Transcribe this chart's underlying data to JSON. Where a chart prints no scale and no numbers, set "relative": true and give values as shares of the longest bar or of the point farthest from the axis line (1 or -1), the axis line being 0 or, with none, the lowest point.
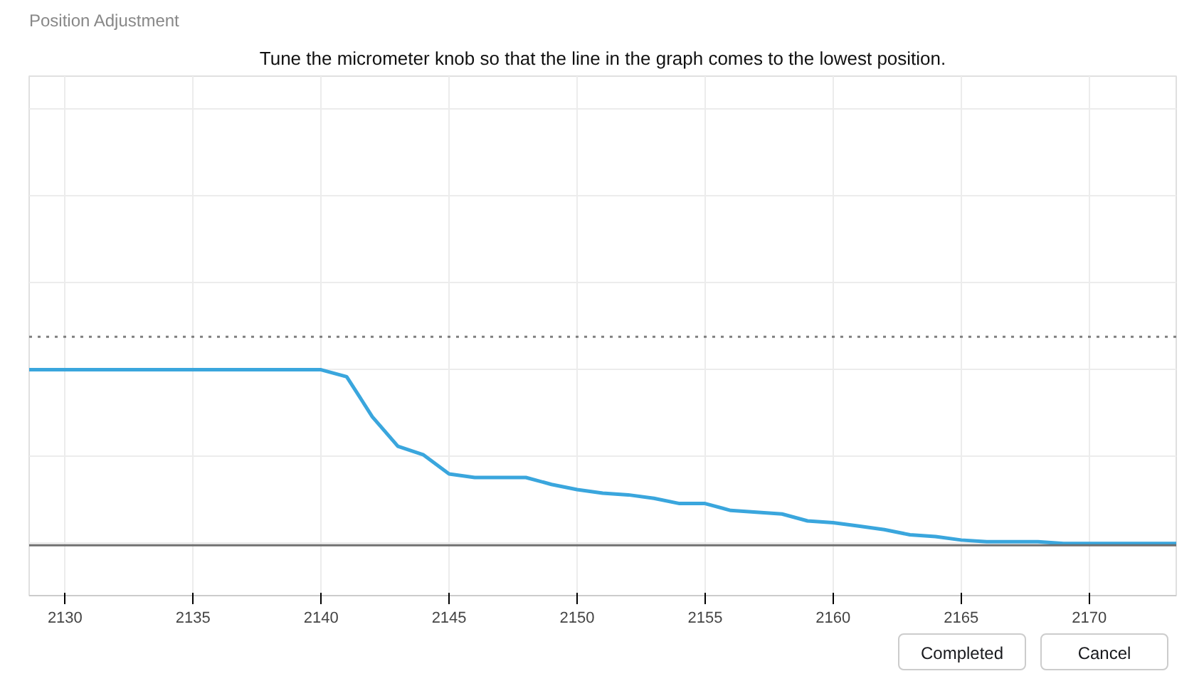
{
  "chart_data": {
    "type": "line",
    "title": "Position Adjustment",
    "subtitle": "Tune the micrometer knob so that the line in the graph comes to the lowest position.",
    "relative": true,
    "x": [
      2128.6,
      2129,
      2130,
      2131,
      2132,
      2133,
      2134,
      2135,
      2136,
      2137,
      2138,
      2139,
      2140,
      2141,
      2142,
      2143,
      2144,
      2145,
      2146,
      2147,
      2148,
      2149,
      2150,
      2151,
      2152,
      2153,
      2154,
      2155,
      2156,
      2157,
      2158,
      2159,
      2160,
      2161,
      2162,
      2163,
      2164,
      2165,
      2166,
      2167,
      2168,
      2169,
      2170,
      2171,
      2172,
      2173.4
    ],
    "series": [
      {
        "color": "#3aa6dd",
        "values": [
          1.0,
          1.0,
          1.0,
          1.0,
          1.0,
          1.0,
          1.0,
          1.0,
          1.0,
          1.0,
          1.0,
          1.0,
          1.0,
          0.96,
          0.73,
          0.56,
          0.51,
          0.4,
          0.38,
          0.38,
          0.38,
          0.34,
          0.31,
          0.29,
          0.28,
          0.26,
          0.23,
          0.23,
          0.19,
          0.18,
          0.17,
          0.13,
          0.12,
          0.1,
          0.08,
          0.05,
          0.04,
          0.02,
          0.01,
          0.01,
          0.01,
          0.0,
          0.0,
          0.0,
          0.0,
          0.0
        ]
      }
    ],
    "xlim": [
      2128.6,
      2173.4
    ],
    "xticks": [
      2130,
      2135,
      2140,
      2145,
      2150,
      2155,
      2160,
      2165,
      2170
    ],
    "ref_lines": [
      {
        "axis": "y",
        "value": 1.19,
        "color": "#808080",
        "line_style": "dotted"
      },
      {
        "axis": "y",
        "value": -0.01,
        "color": "#707070",
        "line_style": "solid"
      }
    ],
    "grid": true,
    "marker": "none",
    "line_style": "solid",
    "annotations": [
      "Completed",
      "Cancel"
    ]
  }
}
